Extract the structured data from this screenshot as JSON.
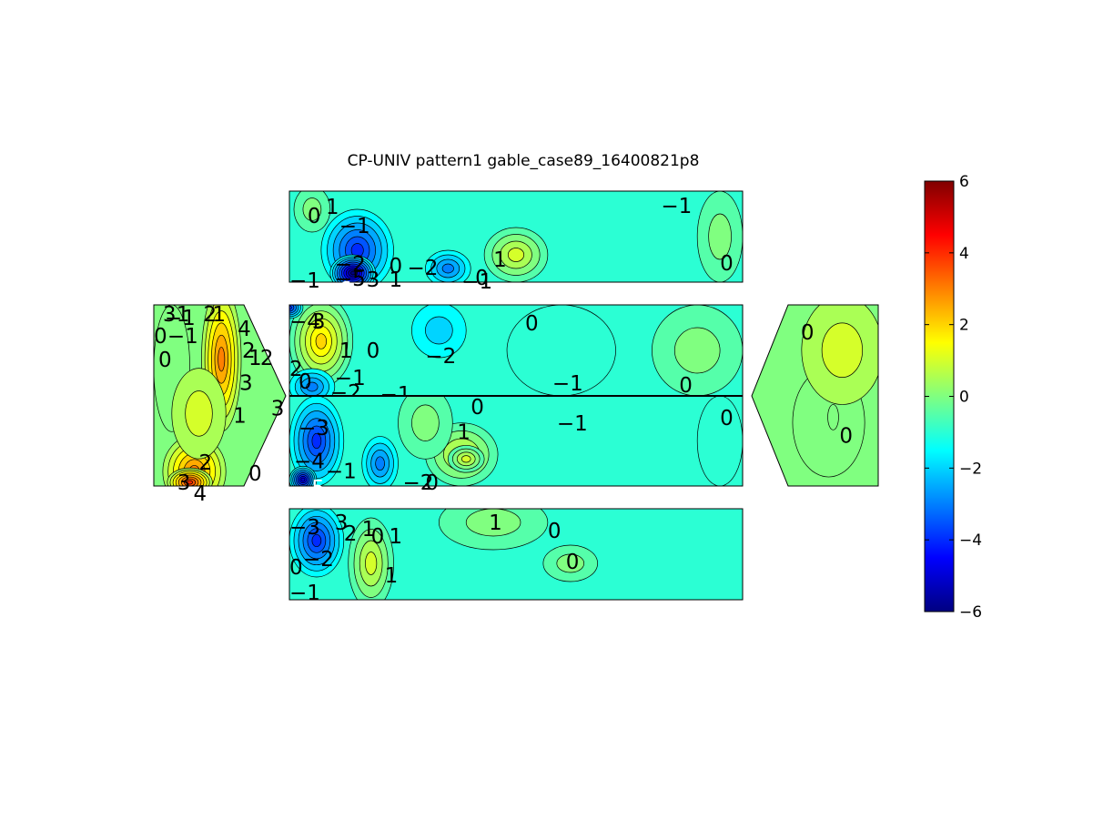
{
  "chart_data": {
    "type": "heatmap",
    "title": "CP-UNIV pattern1 gable_case89_16400821p8",
    "xlabel": "",
    "ylabel": "",
    "colormap": "jet",
    "clim": [
      -6,
      6
    ],
    "colorbar_ticks": [
      "6",
      "4",
      "2",
      "0",
      "−2",
      "−4",
      "−6"
    ],
    "panels": [
      {
        "id": "roof-top",
        "base_value": -1,
        "blobs": [
          {
            "x": 0.15,
            "y": 0.65,
            "rx": 0.08,
            "ry": 0.45,
            "value": -4
          },
          {
            "x": 0.14,
            "y": 0.9,
            "rx": 0.05,
            "ry": 0.2,
            "value": -6
          },
          {
            "x": 0.35,
            "y": 0.85,
            "rx": 0.05,
            "ry": 0.2,
            "value": -3
          },
          {
            "x": 0.5,
            "y": 0.7,
            "rx": 0.07,
            "ry": 0.3,
            "value": 1
          },
          {
            "x": 0.05,
            "y": 0.2,
            "rx": 0.04,
            "ry": 0.25,
            "value": 0
          },
          {
            "x": 0.95,
            "y": 0.5,
            "rx": 0.05,
            "ry": 0.5,
            "value": 0
          }
        ],
        "labels": [
          {
            "text": "0",
            "x": 0.04,
            "y": 0.17
          },
          {
            "text": "1",
            "x": 0.08,
            "y": 0.07
          },
          {
            "text": "−1",
            "x": 0.11,
            "y": 0.28
          },
          {
            "text": "−1",
            "x": 0.82,
            "y": 0.06
          },
          {
            "text": "−2",
            "x": 0.1,
            "y": 0.7
          },
          {
            "text": "−1",
            "x": 0.0,
            "y": 0.88
          },
          {
            "text": "−5",
            "x": 0.1,
            "y": 0.86
          },
          {
            "text": "−6",
            "x": 0.07,
            "y": 0.98,
            "light": true
          },
          {
            "text": "3",
            "x": 0.17,
            "y": 0.87
          },
          {
            "text": "1",
            "x": 0.22,
            "y": 0.87
          },
          {
            "text": "0",
            "x": 0.22,
            "y": 0.72
          },
          {
            "text": "−2",
            "x": 0.26,
            "y": 0.74
          },
          {
            "text": "−1",
            "x": 0.38,
            "y": 0.89
          },
          {
            "text": "0",
            "x": 0.41,
            "y": 0.85
          },
          {
            "text": "1",
            "x": 0.45,
            "y": 0.65
          },
          {
            "text": "0",
            "x": 0.95,
            "y": 0.69
          }
        ]
      },
      {
        "id": "wall-upper",
        "base_value": -1,
        "blobs": [
          {
            "x": 0.07,
            "y": 0.4,
            "rx": 0.07,
            "ry": 0.5,
            "value": 2
          },
          {
            "x": 0.05,
            "y": 0.9,
            "rx": 0.05,
            "ry": 0.2,
            "value": -3
          },
          {
            "x": 0.33,
            "y": 0.28,
            "rx": 0.06,
            "ry": 0.3,
            "value": -2
          },
          {
            "x": 0.6,
            "y": 0.5,
            "rx": 0.12,
            "ry": 0.5,
            "value": -1
          },
          {
            "x": 0.9,
            "y": 0.5,
            "rx": 0.1,
            "ry": 0.5,
            "value": 0
          },
          {
            "x": 0.0,
            "y": 0.03,
            "rx": 0.03,
            "ry": 0.12,
            "value": -4
          }
        ],
        "labels": [
          {
            "text": "−4",
            "x": 0.0,
            "y": 0.08
          },
          {
            "text": "3",
            "x": 0.05,
            "y": 0.08
          },
          {
            "text": "1",
            "x": 0.11,
            "y": 0.4
          },
          {
            "text": "0",
            "x": 0.17,
            "y": 0.4
          },
          {
            "text": "−2",
            "x": 0.3,
            "y": 0.46
          },
          {
            "text": "0",
            "x": 0.52,
            "y": 0.1
          },
          {
            "text": "−1",
            "x": 0.58,
            "y": 0.76
          },
          {
            "text": "0",
            "x": 0.86,
            "y": 0.78
          },
          {
            "text": "2",
            "x": 0.0,
            "y": 0.6
          },
          {
            "text": "0",
            "x": 0.02,
            "y": 0.74
          },
          {
            "text": "−1",
            "x": 0.1,
            "y": 0.7
          },
          {
            "text": "−2",
            "x": 0.09,
            "y": 0.86
          },
          {
            "text": "−1",
            "x": 0.2,
            "y": 0.88
          }
        ]
      },
      {
        "id": "wall-lower",
        "base_value": -1,
        "blobs": [
          {
            "x": 0.06,
            "y": 0.5,
            "rx": 0.06,
            "ry": 0.5,
            "value": -4
          },
          {
            "x": 0.03,
            "y": 0.93,
            "rx": 0.03,
            "ry": 0.15,
            "value": -5
          },
          {
            "x": 0.2,
            "y": 0.75,
            "rx": 0.04,
            "ry": 0.3,
            "value": -3
          },
          {
            "x": 0.38,
            "y": 0.65,
            "rx": 0.08,
            "ry": 0.35,
            "value": 1
          },
          {
            "x": 0.39,
            "y": 0.7,
            "rx": 0.04,
            "ry": 0.15,
            "value": 1
          },
          {
            "x": 0.3,
            "y": 0.3,
            "rx": 0.06,
            "ry": 0.4,
            "value": 0
          },
          {
            "x": 0.95,
            "y": 0.5,
            "rx": 0.05,
            "ry": 0.5,
            "value": -1
          }
        ],
        "labels": [
          {
            "text": "0",
            "x": 0.4,
            "y": 0.02
          },
          {
            "text": "1",
            "x": 0.37,
            "y": 0.3
          },
          {
            "text": "−1",
            "x": 0.59,
            "y": 0.2
          },
          {
            "text": "0",
            "x": 0.95,
            "y": 0.14
          },
          {
            "text": "−3",
            "x": 0.02,
            "y": 0.25
          },
          {
            "text": "−4",
            "x": 0.01,
            "y": 0.62
          },
          {
            "text": "−1",
            "x": 0.08,
            "y": 0.73
          },
          {
            "text": "−5",
            "x": 0.01,
            "y": 0.92,
            "light": true
          },
          {
            "text": "−2",
            "x": 0.25,
            "y": 0.86
          },
          {
            "text": "0",
            "x": 0.3,
            "y": 0.86
          }
        ]
      },
      {
        "id": "roof-bottom",
        "base_value": -1,
        "blobs": [
          {
            "x": 0.06,
            "y": 0.35,
            "rx": 0.06,
            "ry": 0.4,
            "value": -4
          },
          {
            "x": 0.18,
            "y": 0.6,
            "rx": 0.05,
            "ry": 0.5,
            "value": 1
          },
          {
            "x": 0.45,
            "y": 0.15,
            "rx": 0.12,
            "ry": 0.3,
            "value": 0
          },
          {
            "x": 0.62,
            "y": 0.6,
            "rx": 0.06,
            "ry": 0.2,
            "value": 0
          }
        ],
        "labels": [
          {
            "text": "−3",
            "x": 0.0,
            "y": 0.1
          },
          {
            "text": "3",
            "x": 0.1,
            "y": 0.05
          },
          {
            "text": "2",
            "x": 0.12,
            "y": 0.17
          },
          {
            "text": "1",
            "x": 0.16,
            "y": 0.12
          },
          {
            "text": "0",
            "x": 0.18,
            "y": 0.2
          },
          {
            "text": "1",
            "x": 0.22,
            "y": 0.2
          },
          {
            "text": "1",
            "x": 0.44,
            "y": 0.05
          },
          {
            "text": "0",
            "x": 0.57,
            "y": 0.14
          },
          {
            "text": "0",
            "x": 0.61,
            "y": 0.48
          },
          {
            "text": "0",
            "x": 0.0,
            "y": 0.54
          },
          {
            "text": "−2",
            "x": 0.03,
            "y": 0.45
          },
          {
            "text": "1",
            "x": 0.21,
            "y": 0.63
          },
          {
            "text": "−1",
            "x": 0.0,
            "y": 0.82
          }
        ]
      },
      {
        "id": "gable-left",
        "base_value": 0,
        "blobs": [
          {
            "x": 0.75,
            "y": 0.3,
            "rx": 0.22,
            "ry": 0.4,
            "value": 3
          },
          {
            "x": 0.45,
            "y": 0.92,
            "rx": 0.35,
            "ry": 0.2,
            "value": 3
          },
          {
            "x": 0.4,
            "y": 0.98,
            "rx": 0.25,
            "ry": 0.08,
            "value": 4
          },
          {
            "x": 0.2,
            "y": 0.35,
            "rx": 0.2,
            "ry": 0.35,
            "value": 0
          },
          {
            "x": 0.5,
            "y": 0.6,
            "rx": 0.3,
            "ry": 0.25,
            "value": 1
          }
        ],
        "labels": [
          {
            "text": "3",
            "x": 0.1,
            "y": 0.0
          },
          {
            "text": "1",
            "x": 0.25,
            "y": 0.0
          },
          {
            "text": "−1",
            "x": 0.12,
            "y": 0.02
          },
          {
            "text": "2",
            "x": 0.55,
            "y": 0.0
          },
          {
            "text": "1",
            "x": 0.65,
            "y": 0.0
          },
          {
            "text": "0",
            "x": 0.0,
            "y": 0.12
          },
          {
            "text": "−1",
            "x": 0.15,
            "y": 0.12
          },
          {
            "text": "4",
            "x": 0.93,
            "y": 0.08
          },
          {
            "text": "0",
            "x": 0.05,
            "y": 0.25
          },
          {
            "text": "2",
            "x": 0.98,
            "y": 0.2
          },
          {
            "text": "1",
            "x": 1.05,
            "y": 0.24
          },
          {
            "text": "2",
            "x": 1.18,
            "y": 0.24
          },
          {
            "text": "3",
            "x": 0.95,
            "y": 0.38
          },
          {
            "text": "1",
            "x": 0.88,
            "y": 0.56
          },
          {
            "text": "3",
            "x": 1.3,
            "y": 0.52
          },
          {
            "text": "2",
            "x": 0.5,
            "y": 0.82
          },
          {
            "text": "0",
            "x": 1.05,
            "y": 0.88
          },
          {
            "text": "3",
            "x": 0.26,
            "y": 0.93
          },
          {
            "text": "4",
            "x": 0.44,
            "y": 0.99
          }
        ]
      },
      {
        "id": "gable-right",
        "base_value": 0,
        "blobs": [
          {
            "x": 0.45,
            "y": 0.65,
            "rx": 0.4,
            "ry": 0.3,
            "value": 0
          },
          {
            "x": 0.5,
            "y": 0.62,
            "rx": 0.06,
            "ry": 0.07,
            "value": 0
          },
          {
            "x": 0.6,
            "y": 0.25,
            "rx": 0.45,
            "ry": 0.3,
            "value": 1
          }
        ],
        "labels": [
          {
            "text": "0",
            "x": 0.14,
            "y": 0.1
          },
          {
            "text": "0",
            "x": 0.57,
            "y": 0.67
          }
        ]
      }
    ]
  }
}
